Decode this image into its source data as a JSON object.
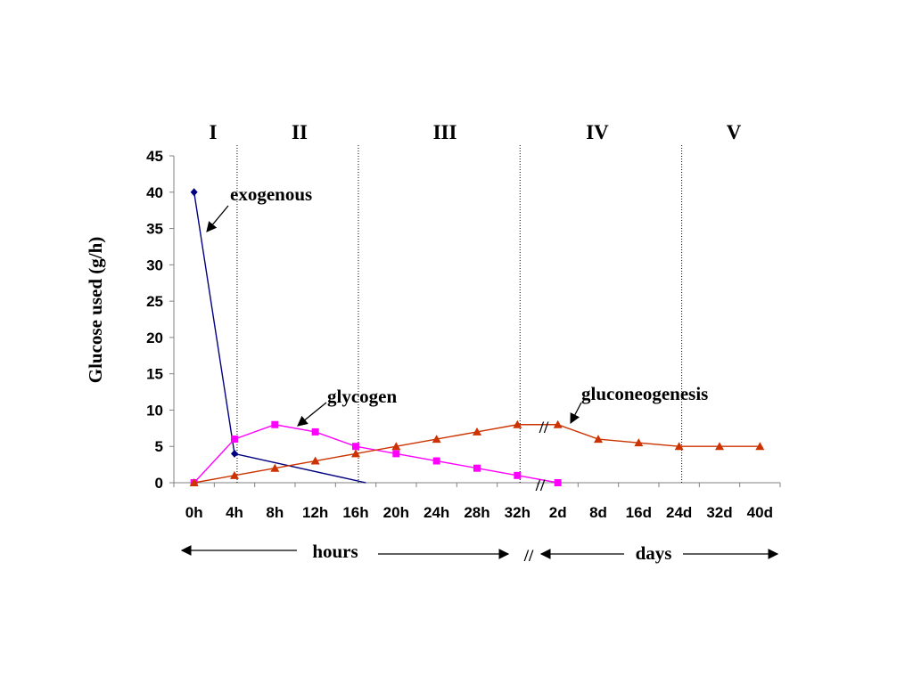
{
  "chart_data": {
    "type": "line",
    "ylabel": "Glucose used (g/h)",
    "ylim": [
      0,
      45
    ],
    "y_ticks": [
      "0",
      "5",
      "10",
      "15",
      "20",
      "25",
      "30",
      "35",
      "40",
      "45"
    ],
    "categories": [
      "0h",
      "4h",
      "8h",
      "12h",
      "16h",
      "20h",
      "24h",
      "28h",
      "32h",
      "2d",
      "8d",
      "16d",
      "24d",
      "32d",
      "40d"
    ],
    "phases": [
      {
        "label": "I"
      },
      {
        "label": "II"
      },
      {
        "label": "III"
      },
      {
        "label": "IV"
      },
      {
        "label": "V"
      }
    ],
    "phase_boundaries": [
      "4h",
      "16h",
      "32h",
      "24d"
    ],
    "series": [
      {
        "name": "exogenous",
        "color": "#000080",
        "marker": "diamond",
        "points": [
          {
            "x": "0h",
            "y": 40
          },
          {
            "x": "4h",
            "y": 4
          }
        ],
        "tail_to_zero_at": "4.25"
      },
      {
        "name": "glycogen",
        "color": "#ff00ff",
        "marker": "square",
        "points": [
          {
            "x": "0h",
            "y": 0
          },
          {
            "x": "4h",
            "y": 6
          },
          {
            "x": "8h",
            "y": 8
          },
          {
            "x": "12h",
            "y": 7
          },
          {
            "x": "16h",
            "y": 5
          },
          {
            "x": "20h",
            "y": 4
          },
          {
            "x": "24h",
            "y": 3
          },
          {
            "x": "28h",
            "y": 2
          },
          {
            "x": "32h",
            "y": 1
          },
          {
            "x": "2d",
            "y": 0
          }
        ]
      },
      {
        "name": "gluconeogenesis",
        "color": "#cc3300",
        "marker": "triangle",
        "points": [
          {
            "x": "0h",
            "y": 0
          },
          {
            "x": "4h",
            "y": 1
          },
          {
            "x": "8h",
            "y": 2
          },
          {
            "x": "12h",
            "y": 3
          },
          {
            "x": "16h",
            "y": 4
          },
          {
            "x": "20h",
            "y": 5
          },
          {
            "x": "24h",
            "y": 6
          },
          {
            "x": "28h",
            "y": 7
          },
          {
            "x": "32h",
            "y": 8
          },
          {
            "x": "2d",
            "y": 8
          },
          {
            "x": "8d",
            "y": 6
          },
          {
            "x": "16d",
            "y": 5.5
          },
          {
            "x": "24d",
            "y": 5
          },
          {
            "x": "32d",
            "y": 5
          },
          {
            "x": "40d",
            "y": 5
          }
        ]
      }
    ],
    "annotations": [
      {
        "text": "exogenous"
      },
      {
        "text": "glycogen"
      },
      {
        "text": "gluconeogenesis"
      }
    ],
    "break_mark": "//",
    "time_scales": [
      {
        "label": "hours"
      },
      {
        "label": "days"
      }
    ],
    "grid": false,
    "legend": "none"
  }
}
